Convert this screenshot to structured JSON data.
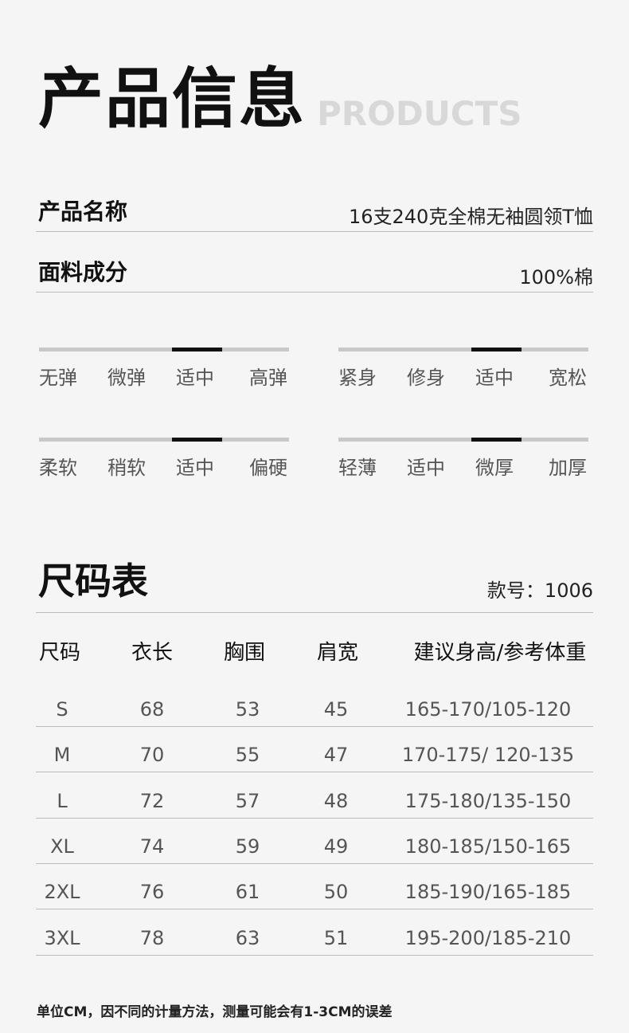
{
  "header": {
    "title": "产品信息",
    "subtitle": "PRODUCTS"
  },
  "info": [
    {
      "label": "产品名称",
      "value": "16支240克全棉无袖圆领T恤"
    },
    {
      "label": "面料成分",
      "value": "100%棉"
    }
  ],
  "scales": [
    {
      "options": [
        "无弹",
        "微弹",
        "适中",
        "高弹"
      ],
      "selected": 2
    },
    {
      "options": [
        "紧身",
        "修身",
        "适中",
        "宽松"
      ],
      "selected": 2
    },
    {
      "options": [
        "柔软",
        "稍软",
        "适中",
        "偏硬"
      ],
      "selected": 2
    },
    {
      "options": [
        "轻薄",
        "适中",
        "微厚",
        "加厚"
      ],
      "selected": 2
    }
  ],
  "size_table": {
    "title": "尺码表",
    "style_no": "款号：1006",
    "columns": [
      "尺码",
      "衣长",
      "胸围",
      "肩宽",
      "建议身高/参考体重"
    ],
    "rows": [
      [
        "S",
        "68",
        "53",
        "45",
        "165-170/105-120"
      ],
      [
        "M",
        "70",
        "55",
        "47",
        "170-175/ 120-135"
      ],
      [
        "L",
        "72",
        "57",
        "48",
        "175-180/135-150"
      ],
      [
        "XL",
        "74",
        "59",
        "49",
        "180-185/150-165"
      ],
      [
        "2XL",
        "76",
        "61",
        "50",
        "185-190/165-185"
      ],
      [
        "3XL",
        "78",
        "63",
        "51",
        "195-200/185-210"
      ]
    ],
    "footnote": "单位CM，因不同的计量方法，测量可能会有1-3CM的误差"
  }
}
